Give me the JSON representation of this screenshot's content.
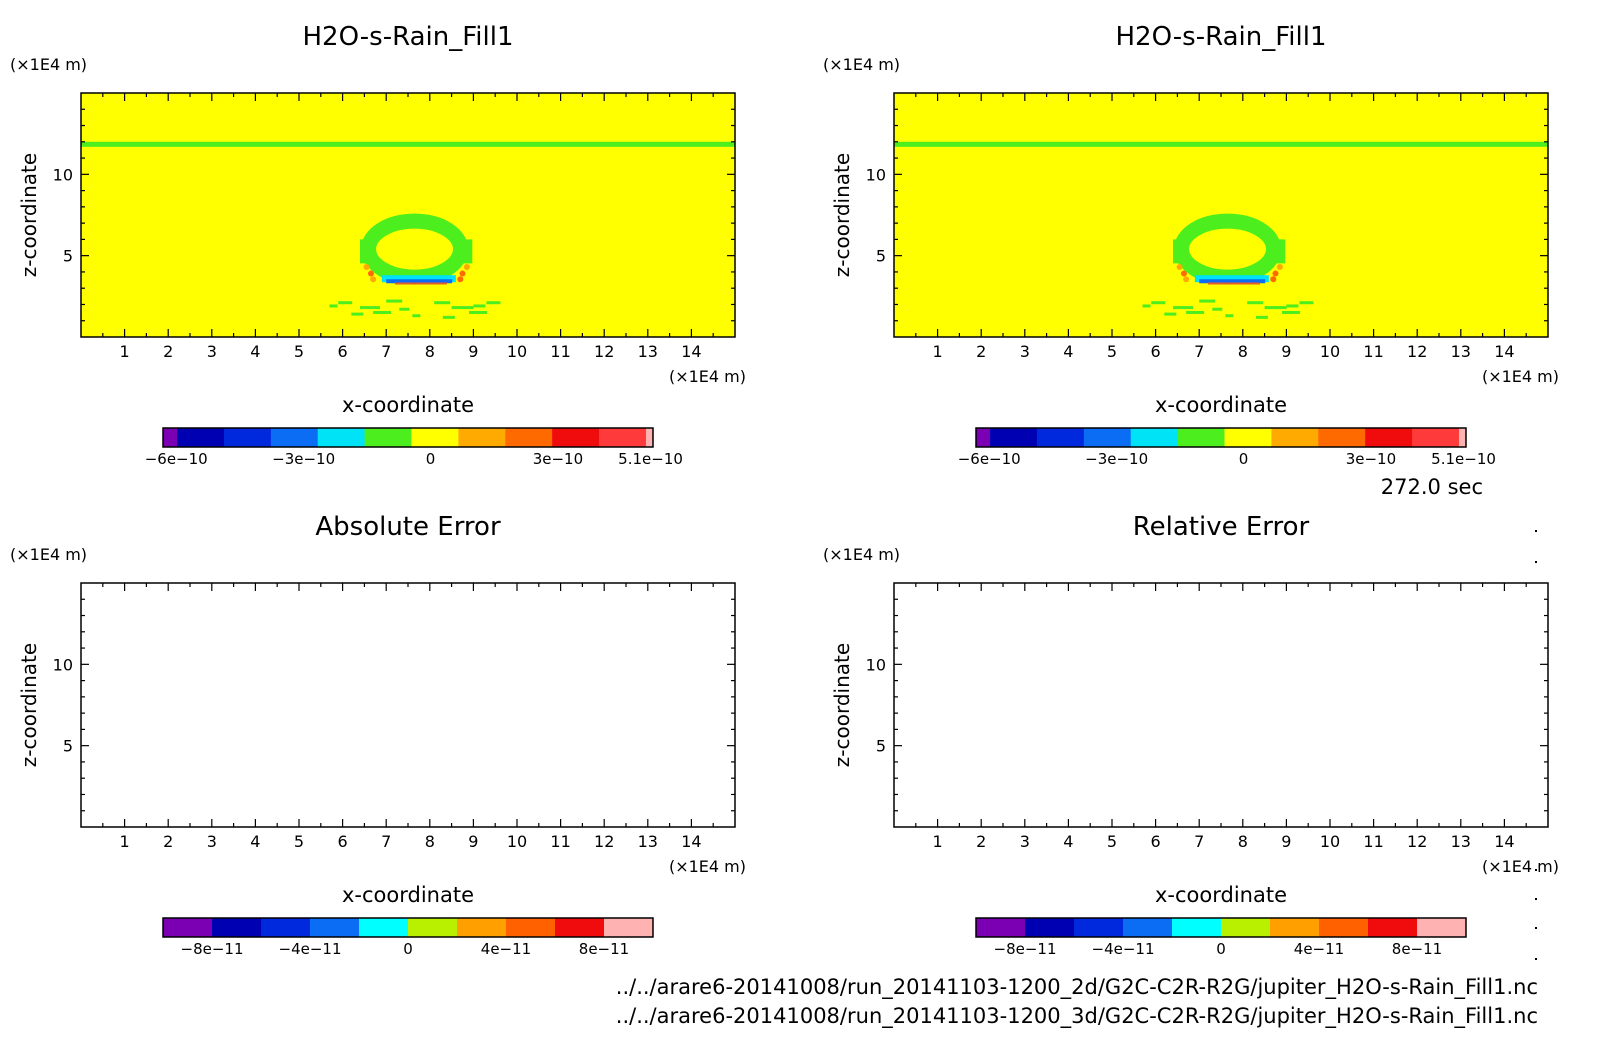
{
  "chart_data": [
    {
      "id": "top-left",
      "type": "heatmap",
      "title": "H2O-s-Rain_Fill1",
      "xlabel": "x-coordinate",
      "ylabel": "z-coordinate",
      "x_unit": "(×1E4 m)",
      "y_unit": "(×1E4 m)",
      "xlim": [
        0,
        15
      ],
      "ylim": [
        0,
        15
      ],
      "x_ticks": [
        "1",
        "2",
        "3",
        "4",
        "5",
        "6",
        "7",
        "8",
        "9",
        "10",
        "11",
        "12",
        "13",
        "14"
      ],
      "y_ticks": [
        "5",
        "10"
      ],
      "background_color": "#ffff00",
      "colorbar": {
        "colors": [
          "#7b00b3",
          "#0000b3",
          "#0028dc",
          "#0b6cf4",
          "#00e3f7",
          "#4cee1e",
          "#ffff00",
          "#ffaa00",
          "#ff6a00",
          "#f00c0c",
          "#ff3a3a",
          "#ffb2b2"
        ],
        "ticks": [
          "−6e−10",
          "−3e−10",
          "0",
          "3e−10",
          "5.1e−10"
        ]
      }
    },
    {
      "id": "top-right",
      "type": "heatmap",
      "title": "H2O-s-Rain_Fill1",
      "xlabel": "x-coordinate",
      "ylabel": "z-coordinate",
      "x_unit": "(×1E4 m)",
      "y_unit": "(×1E4 m)",
      "xlim": [
        0,
        15
      ],
      "ylim": [
        0,
        15
      ],
      "x_ticks": [
        "1",
        "2",
        "3",
        "4",
        "5",
        "6",
        "7",
        "8",
        "9",
        "10",
        "11",
        "12",
        "13",
        "14"
      ],
      "y_ticks": [
        "5",
        "10"
      ],
      "background_color": "#ffff00",
      "colorbar": {
        "colors": [
          "#7b00b3",
          "#0000b3",
          "#0028dc",
          "#0b6cf4",
          "#00e3f7",
          "#4cee1e",
          "#ffff00",
          "#ffaa00",
          "#ff6a00",
          "#f00c0c",
          "#ff3a3a",
          "#ffb2b2"
        ],
        "ticks": [
          "−6e−10",
          "−3e−10",
          "0",
          "3e−10",
          "5.1e−10"
        ]
      }
    },
    {
      "id": "bottom-left",
      "type": "heatmap",
      "title": "Absolute Error",
      "xlabel": "x-coordinate",
      "ylabel": "z-coordinate",
      "x_unit": "(×1E4 m)",
      "y_unit": "(×1E4 m)",
      "xlim": [
        0,
        15
      ],
      "ylim": [
        0,
        15
      ],
      "x_ticks": [
        "1",
        "2",
        "3",
        "4",
        "5",
        "6",
        "7",
        "8",
        "9",
        "10",
        "11",
        "12",
        "13",
        "14"
      ],
      "y_ticks": [
        "5",
        "10"
      ],
      "background_color": "#ffffff",
      "colorbar": {
        "colors": [
          "#7b00b3",
          "#0000b3",
          "#0028dc",
          "#0b6cf4",
          "#00ffff",
          "#b8f000",
          "#ffa000",
          "#ff6000",
          "#f00c0c",
          "#ffb2b2"
        ],
        "ticks": [
          "−8e−11",
          "−4e−11",
          "0",
          "4e−11",
          "8e−11"
        ]
      }
    },
    {
      "id": "bottom-right",
      "type": "heatmap",
      "title": "Relative Error",
      "xlabel": "x-coordinate",
      "ylabel": "z-coordinate",
      "x_unit": "(×1E4 m)",
      "y_unit": "(×1E4 m)",
      "xlim": [
        0,
        15
      ],
      "ylim": [
        0,
        15
      ],
      "x_ticks": [
        "1",
        "2",
        "3",
        "4",
        "5",
        "6",
        "7",
        "8",
        "9",
        "10",
        "11",
        "12",
        "13",
        "14"
      ],
      "y_ticks": [
        "5",
        "10"
      ],
      "background_color": "#ffffff",
      "colorbar": {
        "colors": [
          "#7b00b3",
          "#0000b3",
          "#0028dc",
          "#0b6cf4",
          "#00ffff",
          "#b8f000",
          "#ffa000",
          "#ff6000",
          "#f00c0c",
          "#ffb2b2"
        ],
        "ticks": [
          "−8e−11",
          "−4e−11",
          "0",
          "4e−11",
          "8e−11"
        ]
      }
    }
  ],
  "time_label": "272.0 sec",
  "file_paths": [
    "../../arare6-20141008/run_20141103-1200_2d/G2C-C2R-R2G/jupiter_H2O-s-Rain_Fill1.nc",
    "../../arare6-20141008/run_20141103-1200_3d/G2C-C2R-R2G/jupiter_H2O-s-Rain_Fill1.nc"
  ]
}
